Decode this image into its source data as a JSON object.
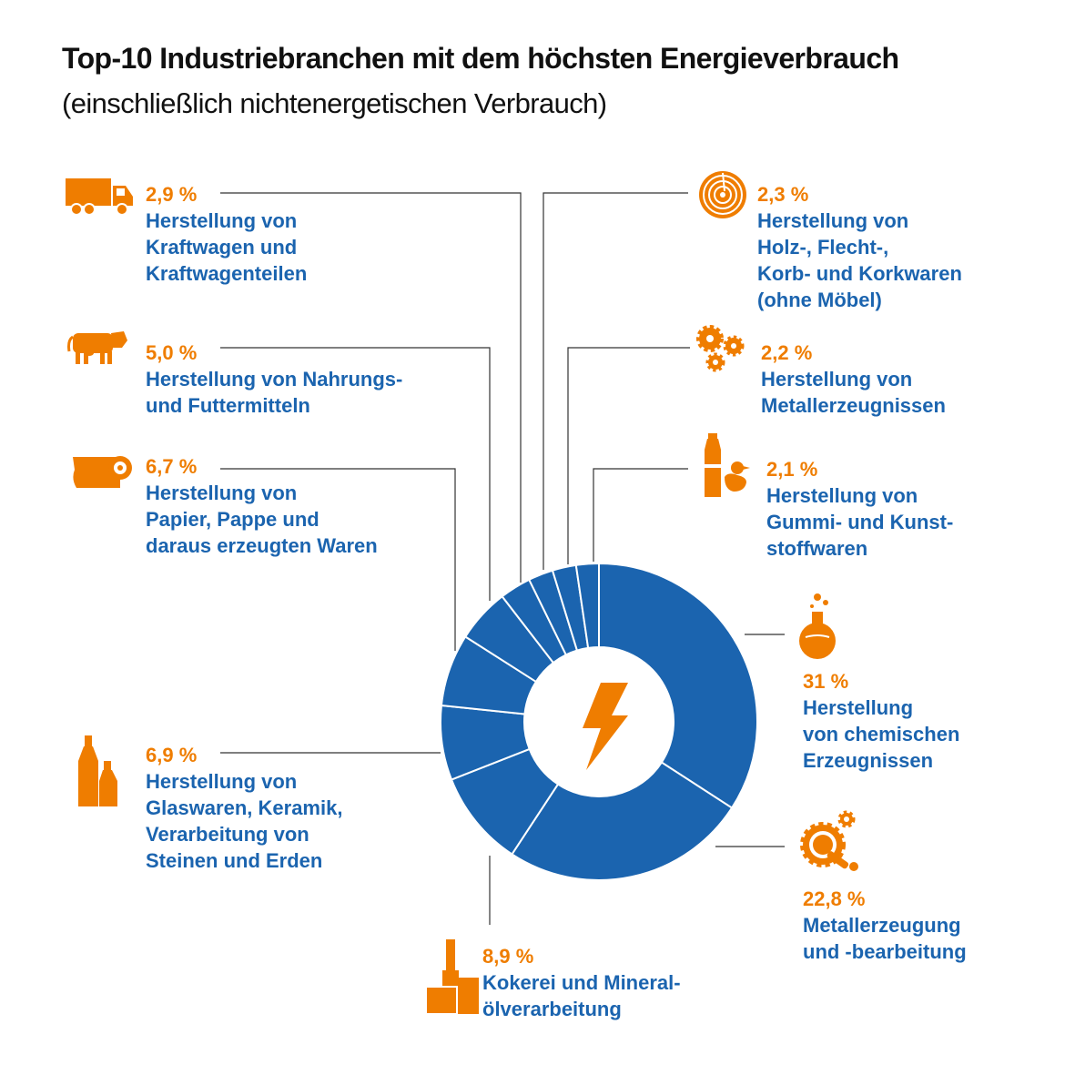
{
  "header": {
    "title": "Top-10 Industriebranchen mit dem höchsten Energieverbrauch",
    "subtitle": "(einschließlich nichtenergetischen Verbrauch)"
  },
  "colors": {
    "accent": "#EF7D00",
    "series": "#1B64AF",
    "line": "#333333",
    "separator": "#ffffff"
  },
  "center_icon": "lightning-bolt-icon",
  "labels": [
    {
      "pct": "31 %",
      "name": "Herstellung\nvon chemischen\nErzeugnissen",
      "icon": "flask-icon"
    },
    {
      "pct": "22,8 %",
      "name": "Metallerzeugung\nund -bearbeitung",
      "icon": "metal-gear-wrench-icon"
    },
    {
      "pct": "8,9 %",
      "name": "Kokerei und Mineral-\nölverarbeitung",
      "icon": "coke-plant-icon"
    },
    {
      "pct": "6,9 %",
      "name": "Herstellung von\nGlaswaren, Keramik,\nVerarbeitung von\nSteinen und Erden",
      "icon": "bottles-icon"
    },
    {
      "pct": "6,7 %",
      "name": "Herstellung von\nPapier, Pappe und\ndaraus erzeugten Waren",
      "icon": "paper-roll-icon"
    },
    {
      "pct": "5,0 %",
      "name": "Herstellung von Nahrungs-\nund Futtermitteln",
      "icon": "cow-icon"
    },
    {
      "pct": "2,9 %",
      "name": "Herstellung von\nKraftwagen und\nKraftwagenteilen",
      "icon": "truck-icon"
    },
    {
      "pct": "2,3 %",
      "name": "Herstellung von\nHolz-, Flecht-,\nKorb- und Korkwaren\n(ohne Möbel)",
      "icon": "wood-rings-icon"
    },
    {
      "pct": "2,2 %",
      "name": "Herstellung von\nMetallerzeugnissen",
      "icon": "gears-icon"
    },
    {
      "pct": "2,1 %",
      "name": "Herstellung von\nGummi- und Kunst-\nstoffwaren",
      "icon": "bottle-duck-icon"
    }
  ],
  "chart_data": {
    "type": "pie",
    "donut": true,
    "categories": [
      "Herstellung von chemischen Erzeugnissen",
      "Metallerzeugung und -bearbeitung",
      "Kokerei und Mineralölverarbeitung",
      "Herstellung von Glaswaren, Keramik, Verarbeitung von Steinen und Erden",
      "Herstellung von Papier, Pappe und daraus erzeugten Waren",
      "Herstellung von Nahrungs- und Futtermitteln",
      "Herstellung von Kraftwagen und Kraftwagenteilen",
      "Herstellung von Holz-, Flecht-, Korb- und Korkwaren (ohne Möbel)",
      "Herstellung von Metallerzeugnissen",
      "Herstellung von Gummi- und Kunststoffwaren"
    ],
    "values": [
      31,
      22.8,
      8.9,
      6.9,
      6.7,
      5.0,
      2.9,
      2.3,
      2.2,
      2.1
    ],
    "unit": "%",
    "title": "Top-10 Industriebranchen mit dem höchsten Energieverbrauch"
  }
}
